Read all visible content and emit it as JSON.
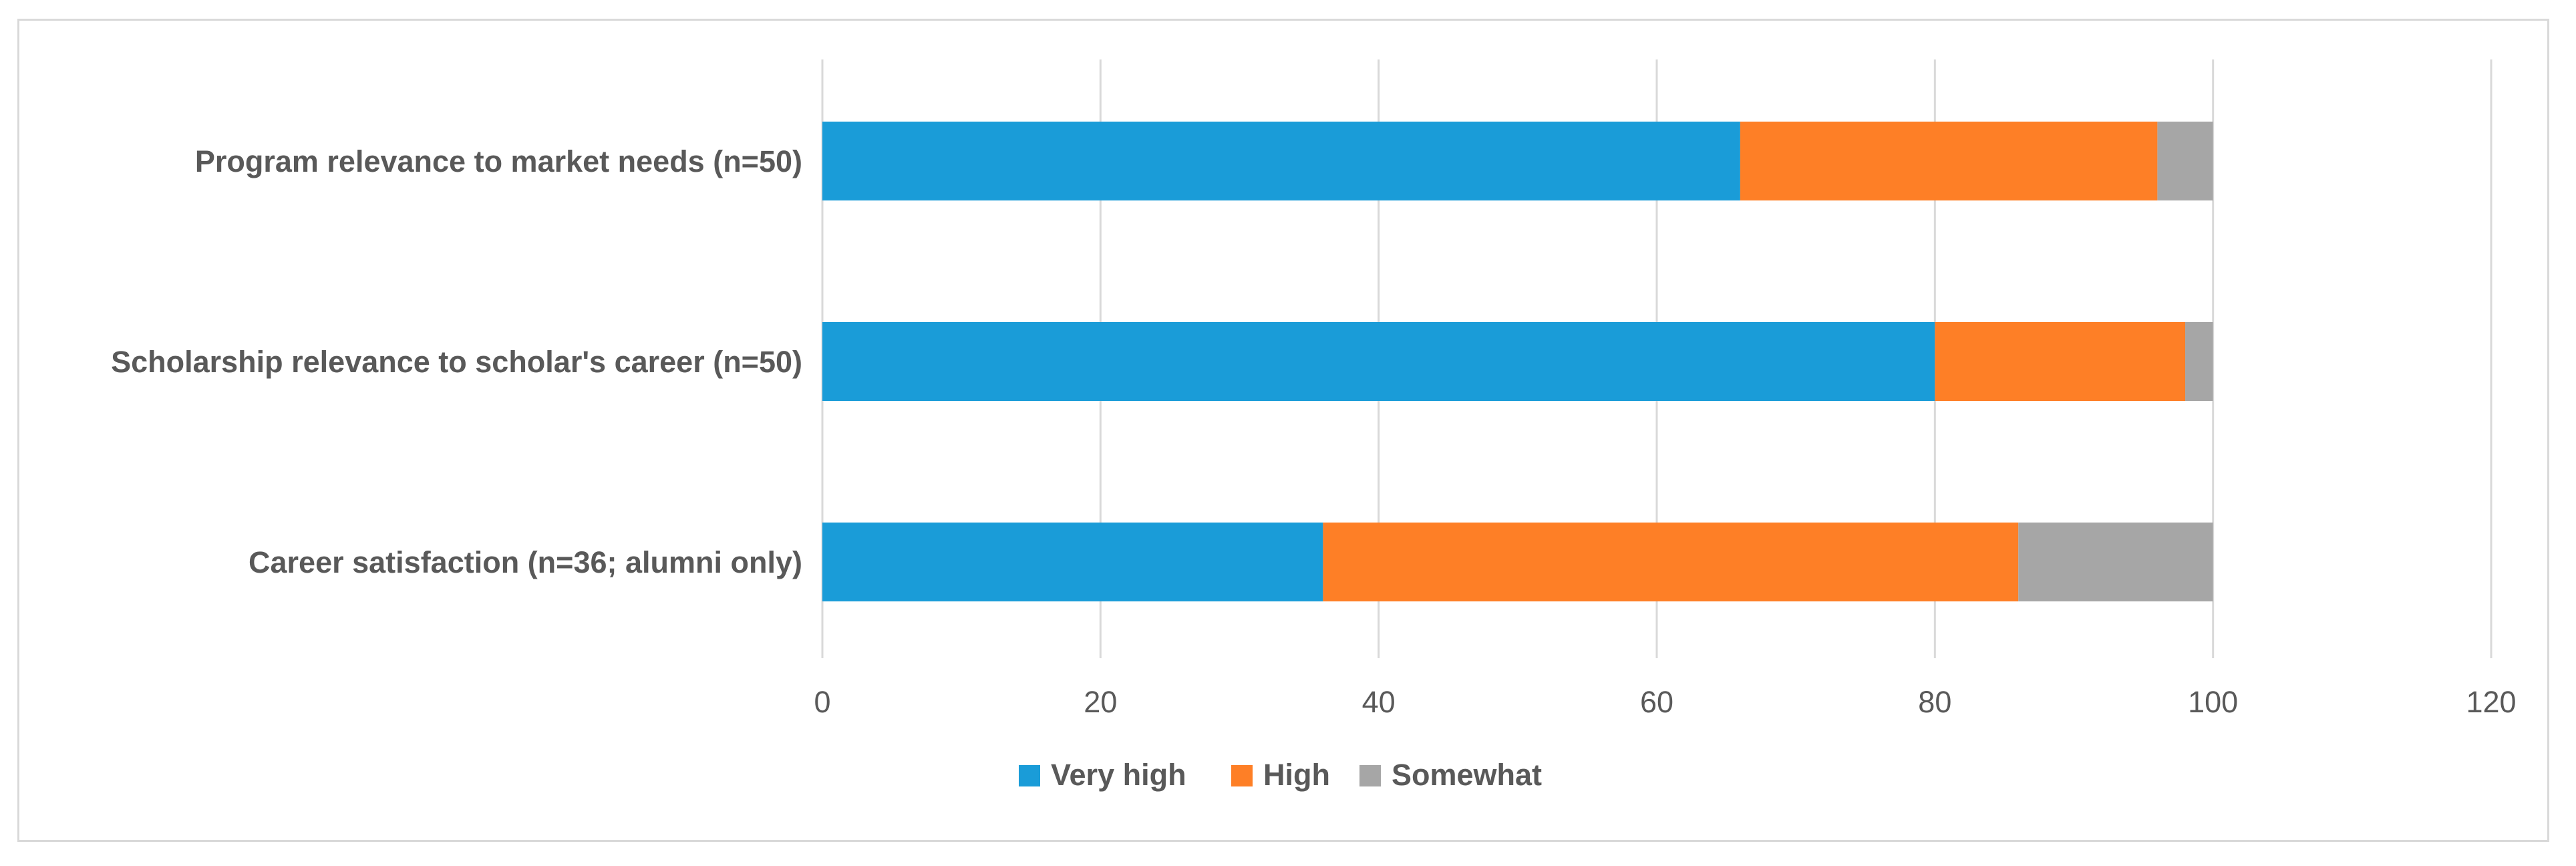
{
  "chart_data": {
    "type": "bar",
    "orientation": "horizontal",
    "stacked": true,
    "categories": [
      "Program relevance to market needs (n=50)",
      "Scholarship relevance to scholar's career  (n=50)",
      "Career satisfaction (n=36; alumni only)"
    ],
    "series": [
      {
        "name": "Very high",
        "color": "#1a9cd8",
        "values": [
          66,
          80,
          36
        ]
      },
      {
        "name": "High",
        "color": "#fe7f26",
        "values": [
          30,
          18,
          50
        ]
      },
      {
        "name": "Somewhat",
        "color": "#a6a6a6",
        "values": [
          4,
          2,
          14
        ]
      }
    ],
    "xlim": [
      0,
      120
    ],
    "xticks": [
      0,
      20,
      40,
      60,
      80,
      100,
      120
    ],
    "grid": true,
    "gridline_color": "#d9d9d9",
    "legend": "bottom",
    "title": "",
    "xlabel": "",
    "ylabel": ""
  }
}
